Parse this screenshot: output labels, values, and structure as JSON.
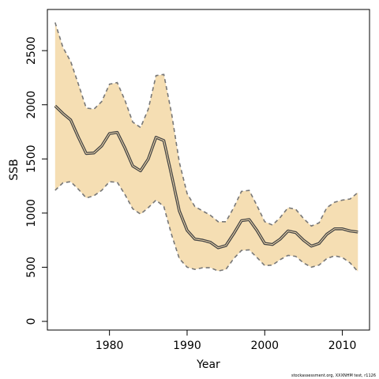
{
  "chart_data": {
    "type": "line",
    "xlabel": "Year",
    "ylabel": "SSB",
    "xlim": [
      1972,
      2013.5
    ],
    "ylim": [
      -80,
      2880
    ],
    "x_ticks": [
      1980,
      1990,
      2000,
      2010
    ],
    "y_ticks": [
      0,
      500,
      1000,
      1500,
      2000,
      2500
    ],
    "band_color": "#f5deb3",
    "line_color": "#444444",
    "bound_color": "#777777",
    "x": [
      1973,
      1974,
      1975,
      1976,
      1977,
      1978,
      1979,
      1980,
      1981,
      1982,
      1983,
      1984,
      1985,
      1986,
      1987,
      1988,
      1989,
      1990,
      1991,
      1992,
      1993,
      1994,
      1995,
      1996,
      1997,
      1998,
      1999,
      2000,
      2001,
      2002,
      2003,
      2004,
      2005,
      2006,
      2007,
      2008,
      2009,
      2010,
      2011,
      2012
    ],
    "series": [
      {
        "role": "estimate",
        "values": [
          1990,
          1920,
          1860,
          1700,
          1550,
          1555,
          1620,
          1735,
          1745,
          1600,
          1435,
          1390,
          1500,
          1700,
          1670,
          1350,
          1020,
          840,
          760,
          750,
          730,
          680,
          700,
          810,
          930,
          940,
          840,
          720,
          710,
          760,
          835,
          820,
          750,
          695,
          720,
          805,
          855,
          855,
          835,
          825
        ]
      },
      {
        "role": "upper",
        "values": [
          2760,
          2530,
          2400,
          2190,
          1970,
          1960,
          2030,
          2190,
          2205,
          2040,
          1840,
          1790,
          1960,
          2270,
          2280,
          1920,
          1470,
          1180,
          1060,
          1020,
          980,
          920,
          920,
          1050,
          1200,
          1210,
          1070,
          920,
          890,
          960,
          1050,
          1035,
          950,
          880,
          910,
          1050,
          1100,
          1120,
          1130,
          1190
        ]
      },
      {
        "role": "lower",
        "values": [
          1210,
          1280,
          1290,
          1220,
          1140,
          1160,
          1210,
          1290,
          1285,
          1170,
          1040,
          990,
          1050,
          1120,
          1060,
          800,
          580,
          500,
          480,
          495,
          495,
          465,
          480,
          580,
          655,
          660,
          590,
          515,
          520,
          570,
          610,
          600,
          540,
          500,
          520,
          580,
          605,
          590,
          540,
          460
        ]
      }
    ],
    "footer": "stockassessment.org, XXXNHM test, r1126"
  }
}
